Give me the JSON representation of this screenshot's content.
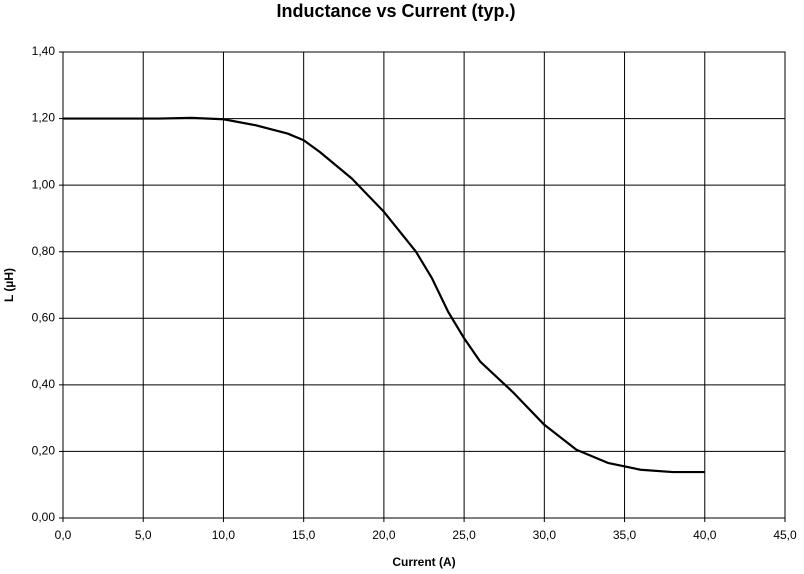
{
  "chart_data": {
    "type": "line",
    "title": "Inductance vs Current (typ.)",
    "x_label": "Current (A)",
    "y_label": "L (µH)",
    "x": [
      0,
      2,
      4,
      6,
      8,
      10,
      12,
      14,
      15,
      16,
      18,
      20,
      22,
      23,
      24,
      25,
      26,
      28,
      30,
      32,
      34,
      36,
      38,
      40
    ],
    "series": [
      {
        "color": "#000000",
        "values": [
          1.2,
          1.2,
          1.2,
          1.2,
          1.202,
          1.198,
          1.18,
          1.155,
          1.135,
          1.1,
          1.02,
          0.92,
          0.8,
          0.72,
          0.62,
          0.54,
          0.47,
          0.38,
          0.28,
          0.205,
          0.165,
          0.145,
          0.138,
          0.138
        ]
      }
    ],
    "xlim": [
      0,
      45
    ],
    "xticks": [
      {
        "value": 0,
        "label": "0,0"
      },
      {
        "value": 5,
        "label": "5,0"
      },
      {
        "value": 10,
        "label": "10,0"
      },
      {
        "value": 15,
        "label": "15,0"
      },
      {
        "value": 20,
        "label": "20,0"
      },
      {
        "value": 25,
        "label": "25,0"
      },
      {
        "value": 30,
        "label": "30,0"
      },
      {
        "value": 35,
        "label": "35,0"
      },
      {
        "value": 40,
        "label": "40,0"
      },
      {
        "value": 45,
        "label": "45,0"
      }
    ],
    "ylim": [
      0,
      1.4
    ],
    "yticks": [
      {
        "value": 0,
        "label": "0,00"
      },
      {
        "value": 0.2,
        "label": "0,20"
      },
      {
        "value": 0.4,
        "label": "0,40"
      },
      {
        "value": 0.6,
        "label": "0,60"
      },
      {
        "value": 0.8,
        "label": "0,80"
      },
      {
        "value": 1.0,
        "label": "1,00"
      },
      {
        "value": 1.2,
        "label": "1,20"
      },
      {
        "value": 1.4,
        "label": "1,40"
      }
    ],
    "grid": true
  }
}
